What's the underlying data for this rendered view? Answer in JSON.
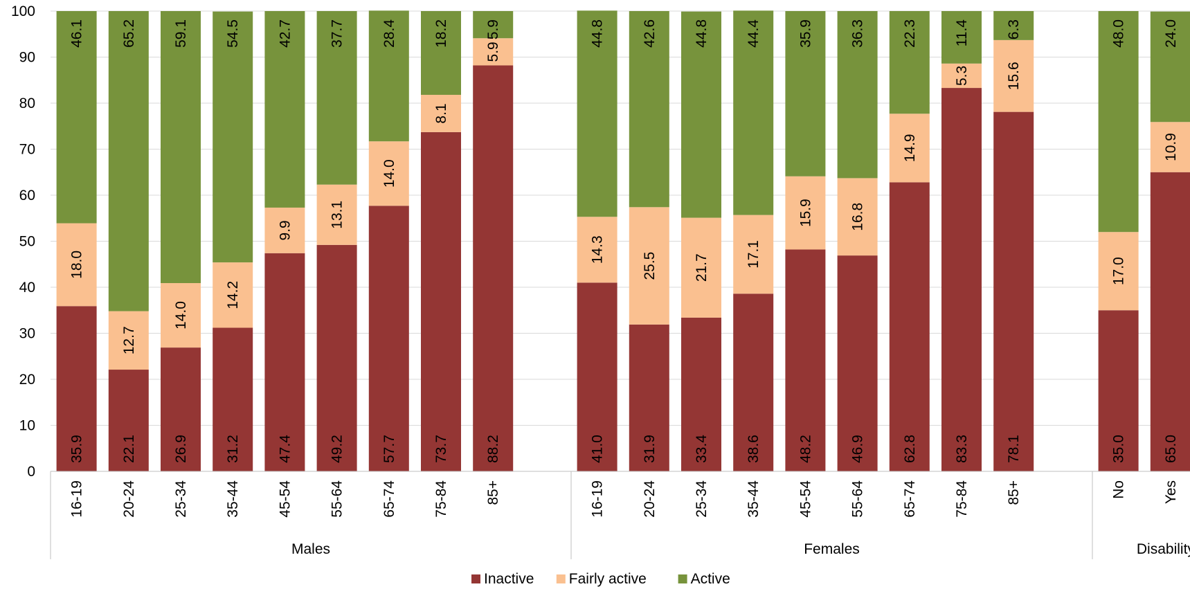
{
  "chart_data": {
    "type": "bar",
    "stacked": true,
    "percent": true,
    "ylim": [
      0,
      100
    ],
    "yticks": [
      0,
      10,
      20,
      30,
      40,
      50,
      60,
      70,
      80,
      90,
      100
    ],
    "grid": true,
    "legend_position": "bottom",
    "groups": [
      {
        "name": "Males",
        "categories": [
          "16-19",
          "20-24",
          "25-34",
          "35-44",
          "45-54",
          "55-64",
          "65-74",
          "75-84",
          "85+"
        ],
        "series": [
          {
            "name": "Inactive",
            "values": [
              35.9,
              22.1,
              26.9,
              31.2,
              47.4,
              49.2,
              57.7,
              73.7,
              88.2
            ]
          },
          {
            "name": "Fairly active",
            "values": [
              18.0,
              12.7,
              14.0,
              14.2,
              9.9,
              13.1,
              14.0,
              8.1,
              5.9
            ]
          },
          {
            "name": "Active",
            "values": [
              46.1,
              65.2,
              59.1,
              54.5,
              42.7,
              37.7,
              28.4,
              18.2,
              5.9
            ]
          }
        ]
      },
      {
        "name": "Females",
        "categories": [
          "16-19",
          "20-24",
          "25-34",
          "35-44",
          "45-54",
          "55-64",
          "65-74",
          "75-84",
          "85+"
        ],
        "series": [
          {
            "name": "Inactive",
            "values": [
              41.0,
              31.9,
              33.4,
              38.6,
              48.2,
              46.9,
              62.8,
              83.3,
              78.1
            ]
          },
          {
            "name": "Fairly active",
            "values": [
              14.3,
              25.5,
              21.7,
              17.1,
              15.9,
              16.8,
              14.9,
              5.3,
              15.6
            ]
          },
          {
            "name": "Active",
            "values": [
              44.8,
              42.6,
              44.8,
              44.4,
              35.9,
              36.3,
              22.3,
              11.4,
              6.3
            ]
          }
        ]
      },
      {
        "name": "Disability*",
        "categories": [
          "No",
          "Yes"
        ],
        "series": [
          {
            "name": "Inactive",
            "values": [
              35.0,
              65.0
            ]
          },
          {
            "name": "Fairly active",
            "values": [
              17.0,
              10.9
            ]
          },
          {
            "name": "Active",
            "values": [
              48.0,
              24.0
            ]
          }
        ]
      }
    ],
    "legend": [
      {
        "name": "Inactive",
        "color": "#943634"
      },
      {
        "name": "Fairly active",
        "color": "#FAC090"
      },
      {
        "name": "Active",
        "color": "#77933C"
      }
    ]
  }
}
